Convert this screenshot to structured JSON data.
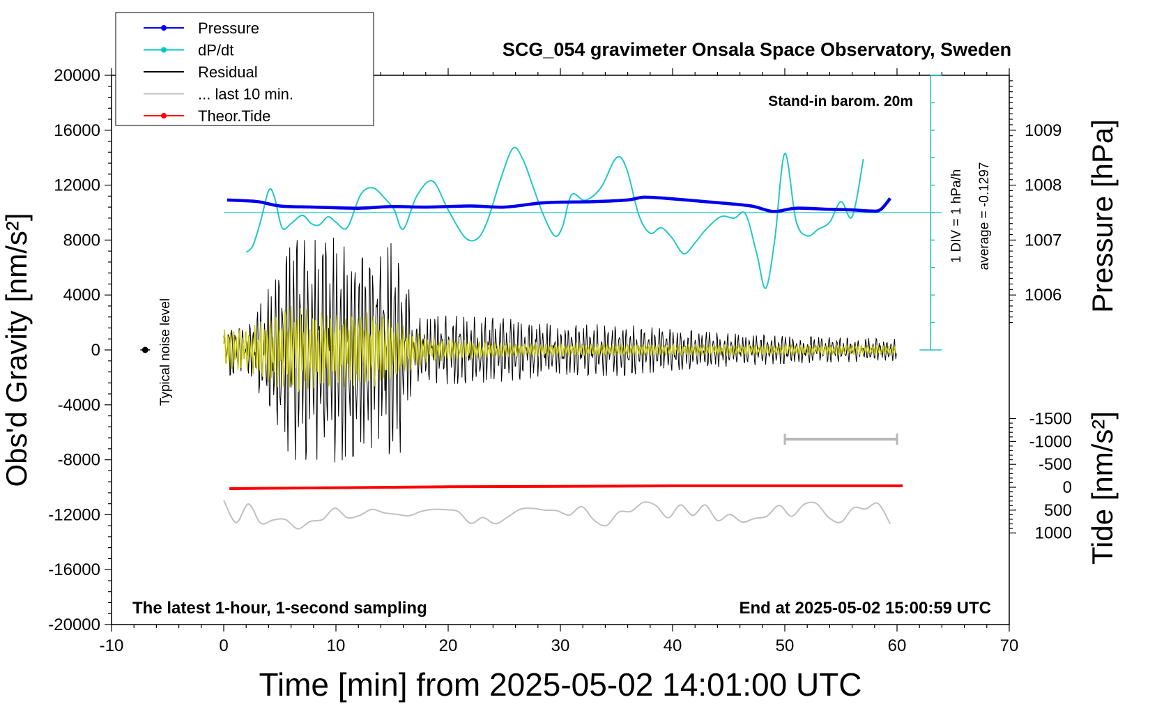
{
  "chart_data": {
    "type": "line",
    "title": "SCG_054 gravimeter Onsala Space Observatory, Sweden",
    "xlabel": "Time [min] from 2025-05-02 14:01:00 UTC",
    "ylabel_left": "Obs'd Gravity [nm/s²]",
    "ylabel_pressure": "Pressure [hPa]",
    "ylabel_tide": "Tide [nm/s²]",
    "xlim": [
      -10,
      70
    ],
    "ylim": [
      -20000,
      20000
    ],
    "x_ticks": [
      "-10",
      "0",
      "10",
      "20",
      "30",
      "40",
      "50",
      "60",
      "70"
    ],
    "y_ticks": [
      "20000",
      "16000",
      "12000",
      "8000",
      "4000",
      "0",
      "-4000",
      "-8000",
      "-12000",
      "-16000",
      "-20000"
    ],
    "pressure_ticks": [
      "1009",
      "1008",
      "1007",
      "1006"
    ],
    "pressure_tick_values": [
      1009,
      1008,
      1007,
      1006
    ],
    "tide_ticks": [
      "1000",
      "500",
      "0",
      "-500",
      "-1000",
      "-1500"
    ],
    "tide_tick_values": [
      1000,
      500,
      0,
      -500,
      -1000,
      -1500
    ],
    "legend_position": "top-left",
    "legend": [
      {
        "label": "Pressure",
        "color": "#0000ff",
        "marker": true
      },
      {
        "label": "dP/dt",
        "color": "#00c8c8",
        "marker": true
      },
      {
        "label": "Residual",
        "color": "#000000",
        "marker": false
      },
      {
        "label": "... last 10 min.",
        "color": "#c0c0c0",
        "marker": false
      },
      {
        "label": "Theor.Tide",
        "color": "#ff0000",
        "marker": true
      }
    ],
    "annotations": {
      "barometer_note": "Stand-in barom. 20m",
      "div_note": "1 DIV = 1 hPa/h",
      "average_note": "average = -0.1297",
      "noise_label": "Typical noise level",
      "bottom_left": "The latest 1-hour, 1-second sampling",
      "bottom_right": "End at 2025-05-02 15:00:59 UTC"
    },
    "series": [
      {
        "name": "Pressure",
        "unit": "hPa",
        "color": "#0000ff",
        "x": [
          0.3,
          3,
          5,
          8,
          12,
          15,
          18,
          22,
          25,
          28,
          30,
          33,
          36,
          37.5,
          40,
          44,
          47,
          49,
          51,
          54,
          56,
          57.5,
          58.5,
          59.4
        ],
        "values": [
          1007.73,
          1007.7,
          1007.62,
          1007.6,
          1007.58,
          1007.61,
          1007.6,
          1007.62,
          1007.6,
          1007.67,
          1007.69,
          1007.7,
          1007.73,
          1007.78,
          1007.75,
          1007.68,
          1007.62,
          1007.52,
          1007.58,
          1007.56,
          1007.55,
          1007.53,
          1007.55,
          1007.76
        ]
      },
      {
        "name": "dP/dt",
        "unit": "hPa/h (1 DIV = 1 hPa/h, zero line at gravity 10000)",
        "color": "#00c8c8",
        "x": [
          2,
          2.6,
          3.3,
          4,
          4.5,
          5.2,
          6,
          7,
          7.8,
          8.5,
          9.3,
          10,
          11,
          12.2,
          13.3,
          14.4,
          15.2,
          16,
          17.2,
          18.6,
          20,
          21.5,
          22.6,
          23.5,
          24.7,
          25.8,
          26.7,
          27.6,
          28.5,
          29.5,
          30.2,
          31,
          32.2,
          33.6,
          35,
          35.9,
          37,
          38,
          39,
          40,
          41,
          42,
          43,
          44.3,
          45.5,
          46.5,
          47.5,
          48.3,
          49.1,
          50,
          51,
          52,
          53,
          54,
          55,
          56,
          57
        ],
        "values": [
          -1.45,
          -1.2,
          -0.3,
          0.8,
          0.6,
          -0.55,
          -0.4,
          -0.1,
          -0.4,
          -0.45,
          -0.15,
          -0.35,
          -0.55,
          0.65,
          0.9,
          0.5,
          0.1,
          -0.6,
          0.6,
          1.15,
          0.1,
          -0.9,
          -0.95,
          -0.3,
          1.25,
          2.35,
          1.9,
          0.9,
          -0.1,
          -0.85,
          -0.5,
          0.65,
          0.45,
          0.9,
          2.0,
          1.6,
          -0.1,
          -0.75,
          -0.55,
          -0.95,
          -1.5,
          -1.1,
          -0.6,
          -0.15,
          -0.2,
          -0.05,
          -1.5,
          -2.75,
          -1.0,
          2.15,
          -0.3,
          -0.85,
          -0.6,
          -0.35,
          0.4,
          -0.15,
          1.95
        ]
      },
      {
        "name": "Residual",
        "unit": "nm/s²",
        "color": "#000000",
        "envelope_x": [
          0,
          2,
          4,
          5,
          6,
          8,
          10,
          12,
          14,
          15.5,
          17,
          20,
          25,
          30,
          35,
          40,
          45,
          50,
          55,
          60
        ],
        "envelope_values": [
          2000,
          1400,
          4500,
          5800,
          8000,
          8000,
          8200,
          7600,
          6800,
          8400,
          2400,
          2500,
          2300,
          1800,
          1900,
          1500,
          1200,
          1000,
          900,
          800
        ]
      },
      {
        "name": "... last 10 min.",
        "unit": "nm/s² (offset -12000)",
        "color": "#c0c0c0",
        "x_range": [
          0,
          60
        ],
        "baseline": -12000,
        "amplitude": 1400
      },
      {
        "name": "Theor.Tide",
        "unit": "nm/s²",
        "color": "#ff0000",
        "x": [
          0.5,
          10,
          20,
          30,
          40,
          50,
          60.5
        ],
        "values": [
          30,
          10,
          -10,
          -20,
          -30,
          -30,
          -30
        ]
      },
      {
        "name": "Filtered (yellow)",
        "unit": "nm/s²",
        "color": "#c8c800",
        "envelope_x": [
          0,
          2,
          5,
          6,
          8,
          10,
          12,
          14,
          16,
          18,
          25,
          40,
          60
        ],
        "envelope_values": [
          1500,
          1500,
          2800,
          3200,
          2800,
          2600,
          2800,
          2600,
          1800,
          900,
          500,
          400,
          350
        ]
      }
    ],
    "noise_marker": {
      "x": -7,
      "y": 0
    },
    "scale_bar": {
      "x0": 50,
      "x1": 60,
      "y": -6500
    }
  }
}
